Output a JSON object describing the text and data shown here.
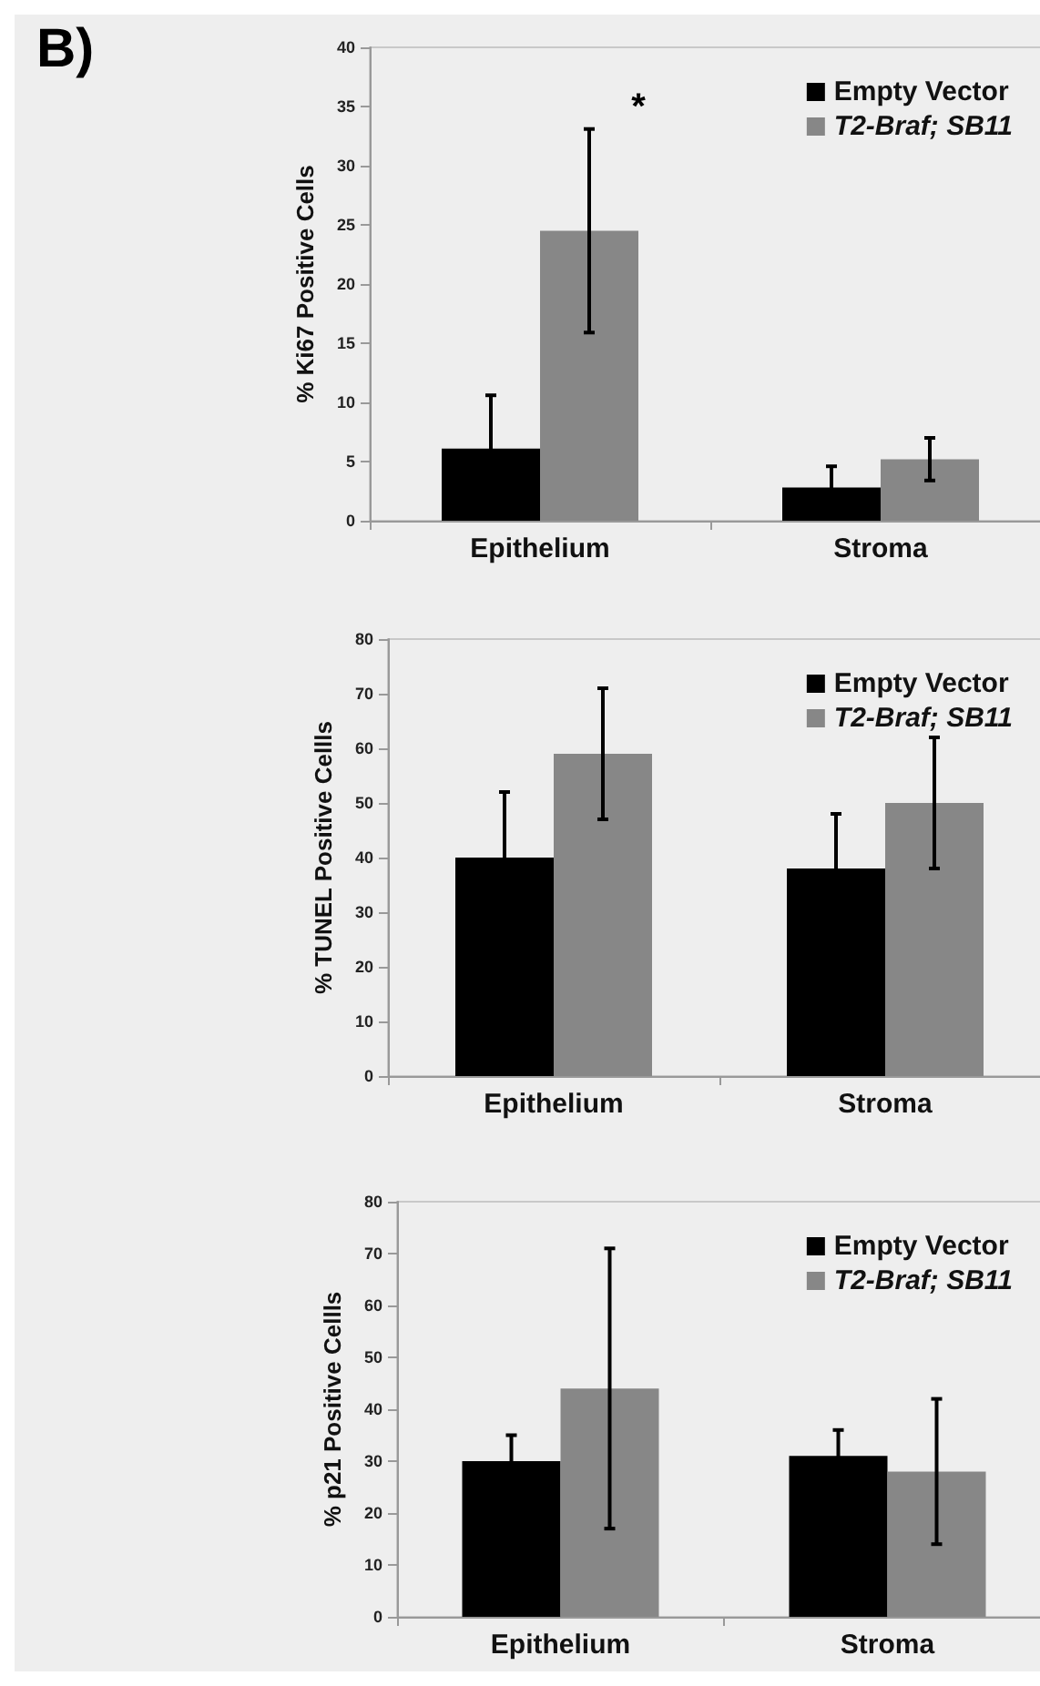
{
  "chart_data": [
    {
      "type": "bar",
      "ylabel": "% Ki67 Positive Cells",
      "categories": [
        "Epithelium",
        "Stroma"
      ],
      "ylim": [
        0,
        40
      ],
      "yticks": [
        0,
        5,
        10,
        15,
        20,
        25,
        30,
        35,
        40
      ],
      "grid": false,
      "legend": "top right",
      "series": [
        {
          "name": "Empty Vector",
          "color": "#000000",
          "values": [
            6.1,
            2.8
          ],
          "errors": [
            4.5,
            1.8
          ]
        },
        {
          "name": "T2-Braf; SB11",
          "color": "#878787",
          "values": [
            24.5,
            5.2
          ],
          "errors": [
            8.6,
            1.8
          ]
        }
      ],
      "annotations": [
        "B)",
        "*"
      ]
    },
    {
      "type": "bar",
      "ylabel": "% TUNEL Positive Cellls",
      "categories": [
        "Epithelium",
        "Stroma"
      ],
      "ylim": [
        0,
        80
      ],
      "yticks": [
        0,
        10,
        20,
        30,
        40,
        50,
        60,
        70,
        80
      ],
      "grid": false,
      "legend": "top right",
      "series": [
        {
          "name": "Empty Vector",
          "color": "#000000",
          "values": [
            40,
            38
          ],
          "errors": [
            12,
            10
          ]
        },
        {
          "name": "T2-Braf; SB11",
          "color": "#878787",
          "values": [
            59,
            50
          ],
          "errors": [
            12,
            12
          ]
        }
      ]
    },
    {
      "type": "bar",
      "ylabel": "% p21 Positive Cellls",
      "categories": [
        "Epithelium",
        "Stroma"
      ],
      "ylim": [
        0,
        80
      ],
      "yticks": [
        0,
        10,
        20,
        30,
        40,
        50,
        60,
        70,
        80
      ],
      "grid": false,
      "legend": "top right",
      "series": [
        {
          "name": "Empty Vector",
          "color": "#000000",
          "values": [
            30,
            31
          ],
          "errors": [
            5,
            5
          ]
        },
        {
          "name": "T2-Braf; SB11",
          "color": "#878787",
          "values": [
            44,
            28
          ],
          "errors": [
            27,
            14
          ]
        }
      ]
    }
  ]
}
